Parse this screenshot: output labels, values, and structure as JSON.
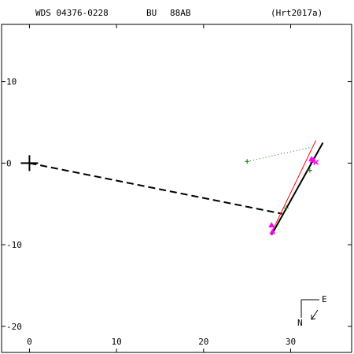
{
  "header": {
    "wds_id": "WDS 04376-0228",
    "discoverer": "BU",
    "pair": "88AB",
    "reference": "(Hrt2017a)"
  },
  "compass": {
    "north_label": "N",
    "east_label": "E"
  },
  "colors": {
    "axes": "#000000",
    "fit_orbit": "#000000",
    "alt_orbit": "#ff0000",
    "micrometer_obs": "#008000",
    "interferometry_obs": "#ff00ff",
    "dotted_link": "#008000",
    "dashed_link": "#000000"
  },
  "chart_data": {
    "type": "scatter",
    "title": "",
    "xlabel": "",
    "ylabel": "",
    "xlim": [
      -3.2,
      37
    ],
    "ylim": [
      -23.2,
      17
    ],
    "x_ticks": [
      0,
      10,
      20,
      30
    ],
    "y_ticks": [
      10,
      0,
      -10,
      -20
    ],
    "primary_star": {
      "x": 0,
      "y": 0,
      "marker": "plus"
    },
    "dashed_link": [
      [
        0,
        0
      ],
      [
        29.0,
        -6.2
      ]
    ],
    "dotted_link": [
      [
        25.0,
        0.2
      ],
      [
        32.2,
        1.9
      ]
    ],
    "series": [
      {
        "marker": "line",
        "points": [
          [
            27.8,
            -8.8
          ],
          [
            33.7,
            2.5
          ]
        ]
      },
      {
        "marker": "line",
        "points": [
          [
            27.9,
            -8.3
          ],
          [
            32.9,
            2.8
          ]
        ]
      },
      {
        "marker": "plus",
        "points": [
          [
            25.0,
            0.2
          ],
          [
            32.2,
            -0.9
          ],
          [
            29.5,
            -5.5
          ],
          [
            32.6,
            0.4
          ]
        ]
      },
      {
        "marker": "triangle",
        "points": [
          [
            27.8,
            -7.6
          ],
          [
            27.9,
            -8.4
          ],
          [
            32.4,
            0.5
          ]
        ]
      },
      {
        "marker": "cross",
        "points": [
          [
            32.9,
            0.1
          ],
          [
            32.5,
            0.3
          ]
        ]
      }
    ]
  }
}
